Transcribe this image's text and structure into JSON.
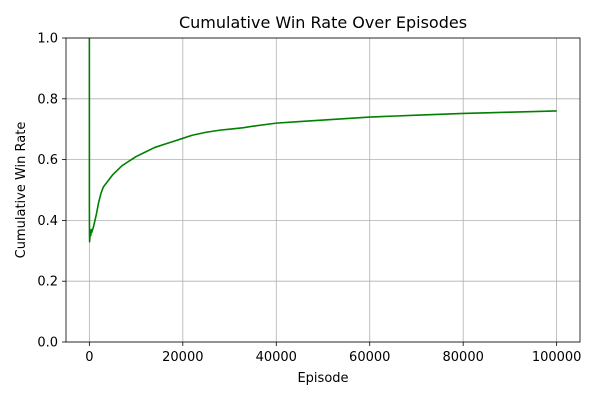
{
  "chart_data": {
    "type": "line",
    "title": "Cumulative Win Rate Over Episodes",
    "xlabel": "Episode",
    "ylabel": "Cumulative Win Rate",
    "xlim": [
      -5000,
      105000
    ],
    "ylim": [
      0.0,
      1.0
    ],
    "x_ticks": [
      0,
      20000,
      40000,
      60000,
      80000,
      100000
    ],
    "x_tick_labels": [
      "0",
      "20000",
      "40000",
      "60000",
      "80000",
      "100000"
    ],
    "y_ticks": [
      0.0,
      0.2,
      0.4,
      0.6,
      0.8,
      1.0
    ],
    "y_tick_labels": [
      "0.0",
      "0.2",
      "0.4",
      "0.6",
      "0.8",
      "1.0"
    ],
    "grid": true,
    "series": [
      {
        "color": "#008000",
        "x": [
          1,
          5,
          20,
          50,
          100,
          200,
          300,
          400,
          500,
          700,
          900,
          1200,
          1500,
          2000,
          2500,
          3000,
          3500,
          4000,
          5000,
          6000,
          7000,
          8000,
          9000,
          10000,
          12000,
          14000,
          16000,
          18000,
          20000,
          22000,
          25000,
          28000,
          30000,
          33000,
          35000,
          40000,
          45000,
          50000,
          55000,
          60000,
          65000,
          70000,
          75000,
          80000,
          85000,
          90000,
          95000,
          100000
        ],
        "y": [
          1.0,
          0.45,
          0.38,
          0.33,
          0.34,
          0.36,
          0.35,
          0.37,
          0.36,
          0.37,
          0.38,
          0.4,
          0.42,
          0.46,
          0.49,
          0.51,
          0.52,
          0.53,
          0.55,
          0.565,
          0.58,
          0.59,
          0.6,
          0.61,
          0.625,
          0.64,
          0.65,
          0.66,
          0.67,
          0.68,
          0.69,
          0.697,
          0.7,
          0.705,
          0.71,
          0.72,
          0.725,
          0.73,
          0.735,
          0.74,
          0.743,
          0.746,
          0.749,
          0.752,
          0.754,
          0.756,
          0.758,
          0.76
        ]
      }
    ]
  }
}
